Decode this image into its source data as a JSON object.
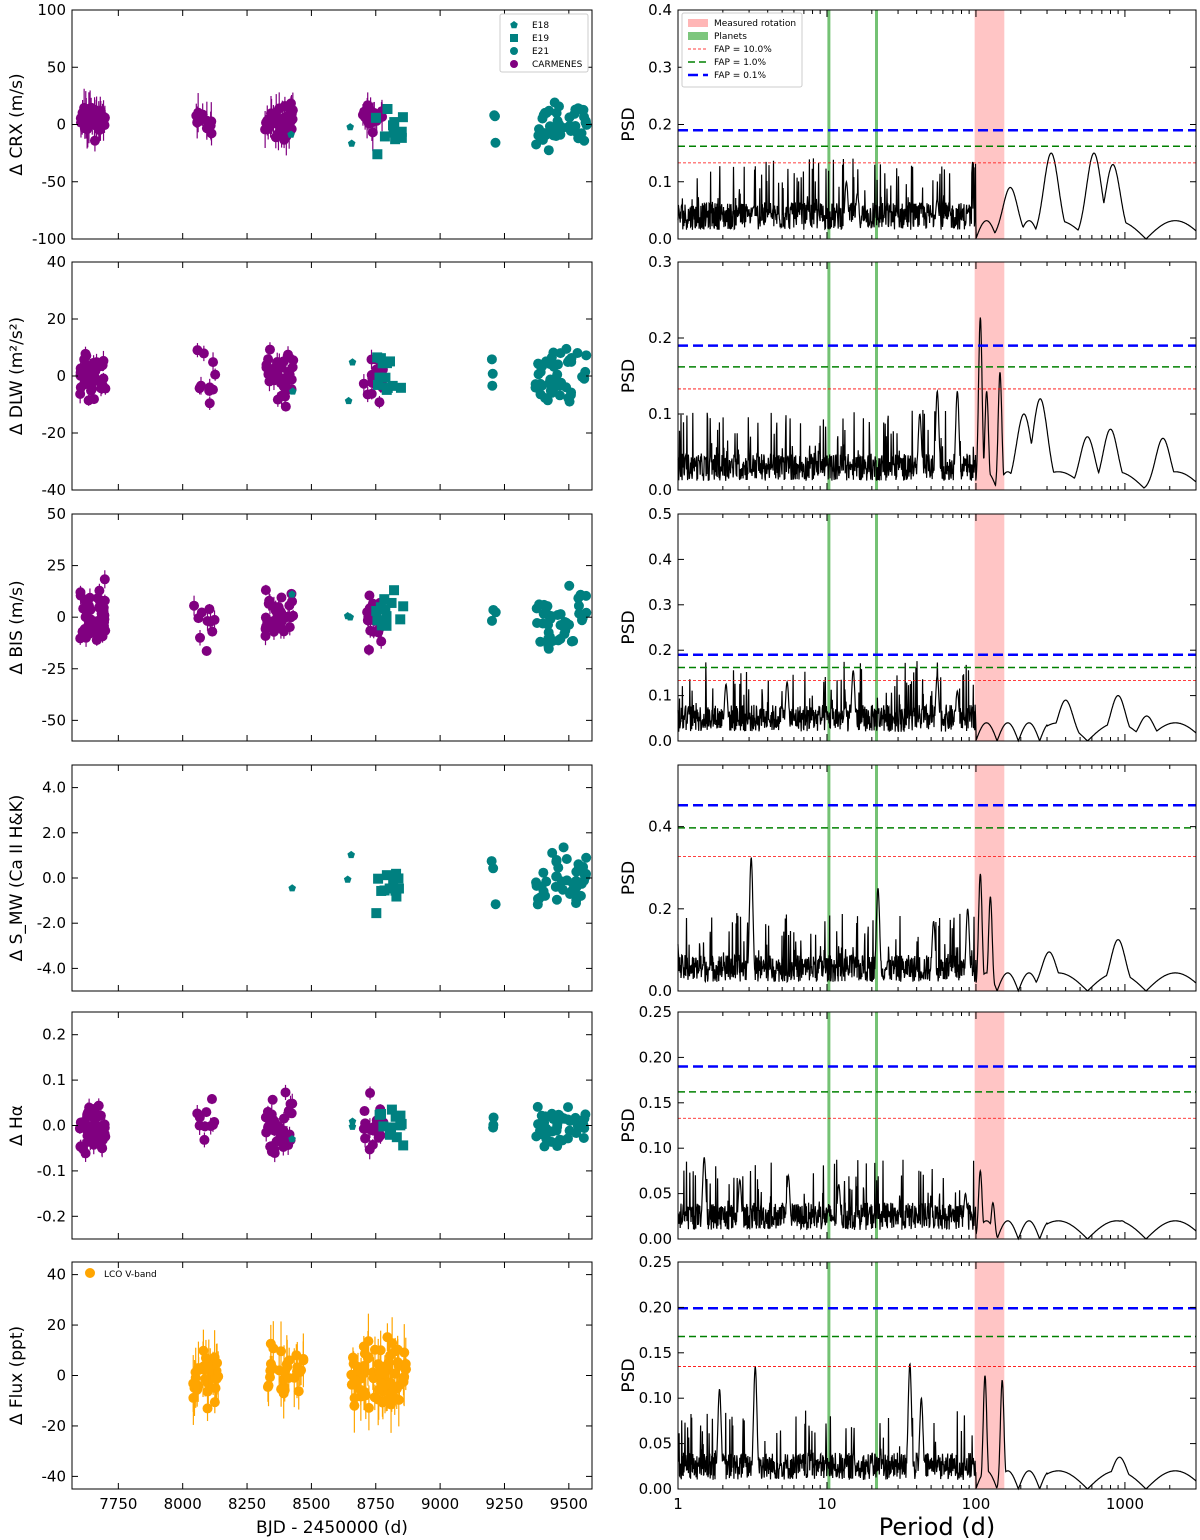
{
  "chart_data": {
    "type": "scatter+periodogram",
    "colors": {
      "carmenes": "#800080",
      "espresso": "#008080",
      "lco": "#FFA500",
      "rotation_band": "#FFB6B6",
      "planets": "#5CB85C",
      "fap10": "#FF0000",
      "fap1": "#008000",
      "fap01": "#0000FF",
      "periodogram": "#000000"
    },
    "bottom_left_xlabel": "BJD - 2450000 (d)",
    "bottom_right_xlabel": "Period (d)",
    "left_x_ticks": [
      "7750",
      "8000",
      "8250",
      "8500",
      "8750",
      "9000",
      "9250",
      "9500"
    ],
    "right_x_ticks": [
      "1",
      "10",
      "100",
      "1000"
    ],
    "legend_timeseries": [
      "E18",
      "E19",
      "E21",
      "CARMENES"
    ],
    "legend_photometry": "LCO V-band",
    "legend_periodogram": [
      "Measured rotation",
      "Planets",
      "FAP = 10.0%",
      "FAP =  1.0%",
      "FAP =  0.1%"
    ],
    "planet_periods": [
      10.3,
      21.5
    ],
    "rotation_range": [
      98,
      155
    ],
    "rows": [
      {
        "ylabel": "Δ CRX (m/s)",
        "ylim": [
          -100,
          100
        ],
        "yticks": [
          "100",
          "50",
          "0",
          "-50",
          "-100"
        ],
        "psd_ylim": [
          0,
          0.4
        ],
        "psd_yticks": [
          "0.4",
          "0.3",
          "0.2",
          "0.1",
          "0.0"
        ],
        "fap": [
          0.133,
          0.162,
          0.19
        ],
        "peaks": [
          [
            3.2,
            0.055
          ],
          [
            7.5,
            0.05
          ],
          [
            13.5,
            0.1
          ],
          [
            16,
            0.08
          ],
          [
            55,
            0.07
          ],
          [
            170,
            0.09
          ],
          [
            320,
            0.15
          ],
          [
            620,
            0.15
          ],
          [
            830,
            0.13
          ]
        ]
      },
      {
        "ylabel": "Δ DLW (m²/s²)",
        "ylim": [
          -40,
          40
        ],
        "yticks": [
          "40",
          "20",
          "0",
          "-20",
          "-40"
        ],
        "psd_ylim": [
          0,
          0.3
        ],
        "psd_yticks": [
          "0.3",
          "0.2",
          "0.1",
          "0.0"
        ],
        "fap": [
          0.133,
          0.162,
          0.19
        ],
        "peaks": [
          [
            42,
            0.1
          ],
          [
            55,
            0.13
          ],
          [
            75,
            0.13
          ],
          [
            107,
            0.227
          ],
          [
            118,
            0.13
          ],
          [
            145,
            0.155
          ],
          [
            210,
            0.1
          ],
          [
            270,
            0.12
          ],
          [
            560,
            0.07
          ],
          [
            800,
            0.08
          ],
          [
            1800,
            0.068
          ]
        ]
      },
      {
        "ylabel": "Δ BIS (m/s)",
        "ylim": [
          -60,
          50
        ],
        "yticks": [
          "50",
          "25",
          "0",
          "-25",
          "-50"
        ],
        "psd_ylim": [
          0,
          0.5
        ],
        "psd_yticks": [
          "0.5",
          "0.4",
          "0.3",
          "0.2",
          "0.1",
          "0.0"
        ],
        "fap": [
          0.133,
          0.162,
          0.19
        ],
        "peaks": [
          [
            2.1,
            0.125
          ],
          [
            5.4,
            0.13
          ],
          [
            15,
            0.155
          ],
          [
            55,
            0.145
          ],
          [
            75,
            0.11
          ],
          [
            400,
            0.09
          ],
          [
            900,
            0.1
          ],
          [
            1400,
            0.055
          ]
        ]
      },
      {
        "ylabel": "Δ S_MW (Ca II H&K)",
        "ylim": [
          -5,
          5
        ],
        "yticks": [
          "4.0",
          "2.0",
          "0.0",
          "-2.0",
          "-4.0"
        ],
        "psd_ylim": [
          0,
          0.55
        ],
        "psd_yticks": [
          "0.4",
          "0.2",
          "0.0"
        ],
        "fap": [
          0.327,
          0.397,
          0.452
        ],
        "peaks": [
          [
            3.1,
            0.325
          ],
          [
            22,
            0.25
          ],
          [
            52,
            0.17
          ],
          [
            88,
            0.2
          ],
          [
            107,
            0.285
          ],
          [
            125,
            0.23
          ],
          [
            310,
            0.095
          ],
          [
            900,
            0.125
          ]
        ]
      },
      {
        "ylabel": "Δ Hα",
        "ylim": [
          -0.25,
          0.25
        ],
        "yticks": [
          "0.2",
          "0.1",
          "0.0",
          "-0.1",
          "-0.2"
        ],
        "psd_ylim": [
          0,
          0.25
        ],
        "psd_yticks": [
          "0.25",
          "0.20",
          "0.15",
          "0.10",
          "0.05",
          "0.00"
        ],
        "fap": [
          0.133,
          0.162,
          0.19
        ],
        "peaks": [
          [
            1.5,
            0.09
          ],
          [
            2.6,
            0.065
          ],
          [
            5.5,
            0.07
          ],
          [
            12,
            0.06
          ],
          [
            85,
            0.05
          ],
          [
            107,
            0.075
          ],
          [
            130,
            0.04
          ],
          [
            950,
            0.02
          ]
        ]
      },
      {
        "ylabel": "Δ Flux (ppt)",
        "ylim": [
          -45,
          45
        ],
        "yticks": [
          "40",
          "20",
          "0",
          "-20",
          "-40"
        ],
        "psd_ylim": [
          0,
          0.25
        ],
        "psd_yticks": [
          "0.25",
          "0.20",
          "0.15",
          "0.10",
          "0.05",
          "0.00"
        ],
        "fap": [
          0.135,
          0.168,
          0.199
        ],
        "peaks": [
          [
            1.9,
            0.11
          ],
          [
            3.3,
            0.135
          ],
          [
            36,
            0.138
          ],
          [
            43,
            0.1
          ],
          [
            115,
            0.125
          ],
          [
            150,
            0.12
          ],
          [
            920,
            0.035
          ]
        ]
      }
    ]
  }
}
